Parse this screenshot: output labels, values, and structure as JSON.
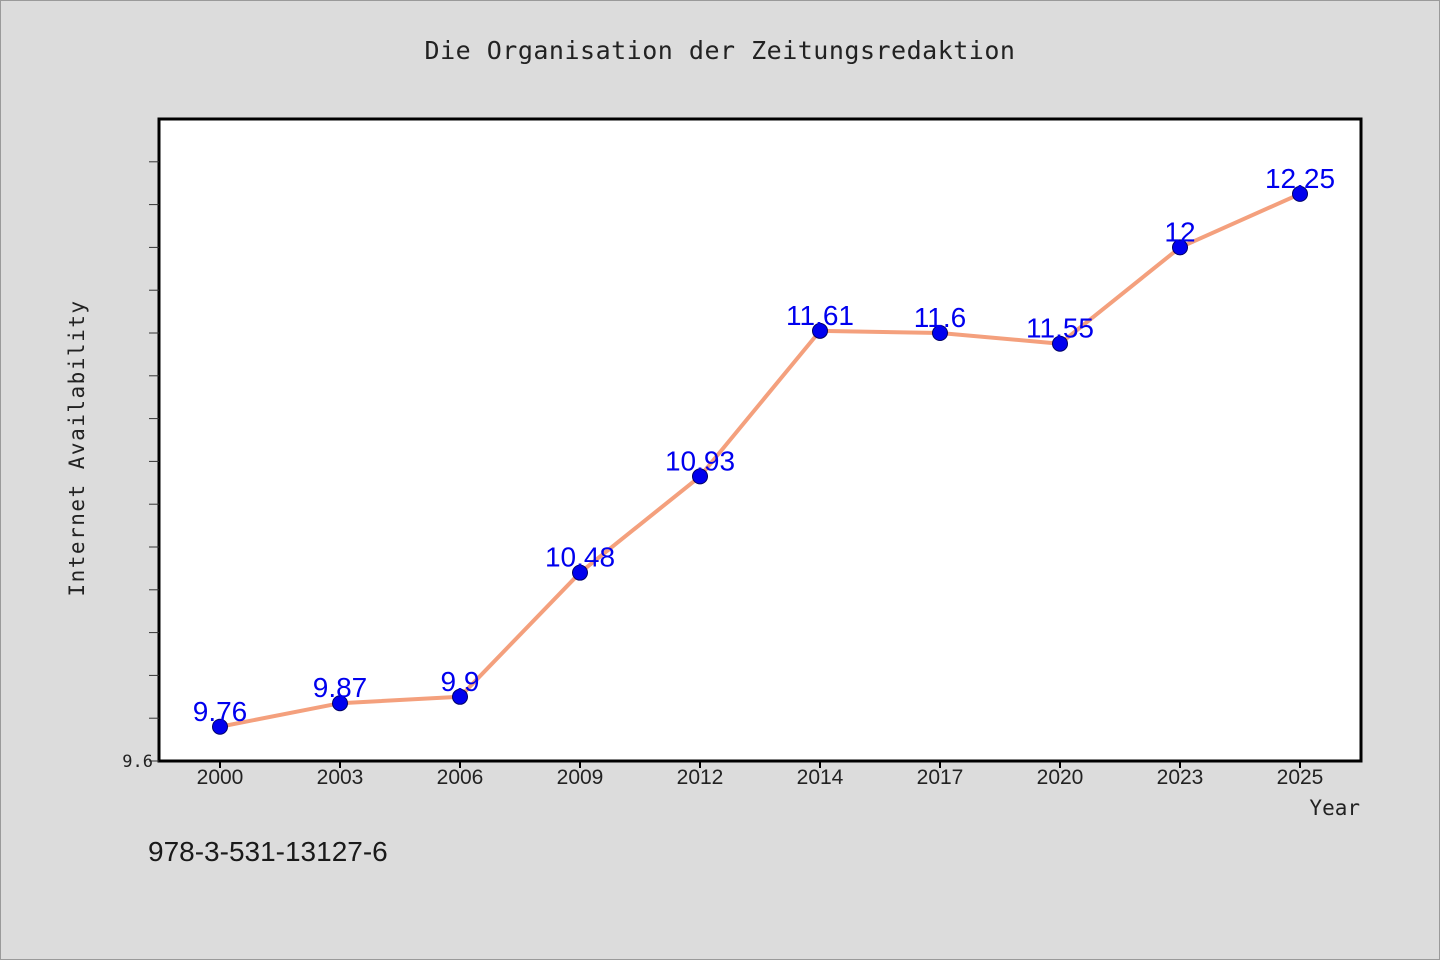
{
  "chart_data": {
    "type": "line",
    "title": "Die Organisation der Zeitungsredaktion",
    "xlabel": "Year",
    "ylabel": "Internet Availability",
    "categories": [
      "2000",
      "2003",
      "2006",
      "2009",
      "2012",
      "2014",
      "2017",
      "2020",
      "2023",
      "2025"
    ],
    "series": [
      {
        "values": [
          9.76,
          9.87,
          9.9,
          10.48,
          10.93,
          11.61,
          11.6,
          11.55,
          12.0,
          12.25
        ],
        "labels": [
          "9.76",
          "9.87",
          "9.9",
          "10.48",
          "10.93",
          "11.61",
          "11.6",
          "11.55",
          "12",
          "12.25"
        ],
        "line_color": "#f4a07d",
        "marker_color": "#0000ee",
        "label_color": "#0000ee"
      }
    ],
    "yticks": [
      "9.6"
    ],
    "ylim": [
      9.6,
      12.6
    ],
    "grid": false,
    "legend": "none"
  },
  "footer": {
    "isbn": "978-3-531-13127-6"
  },
  "colors": {
    "background": "#dcdcdc",
    "plot_background": "#ffffff",
    "text": "#222222"
  }
}
